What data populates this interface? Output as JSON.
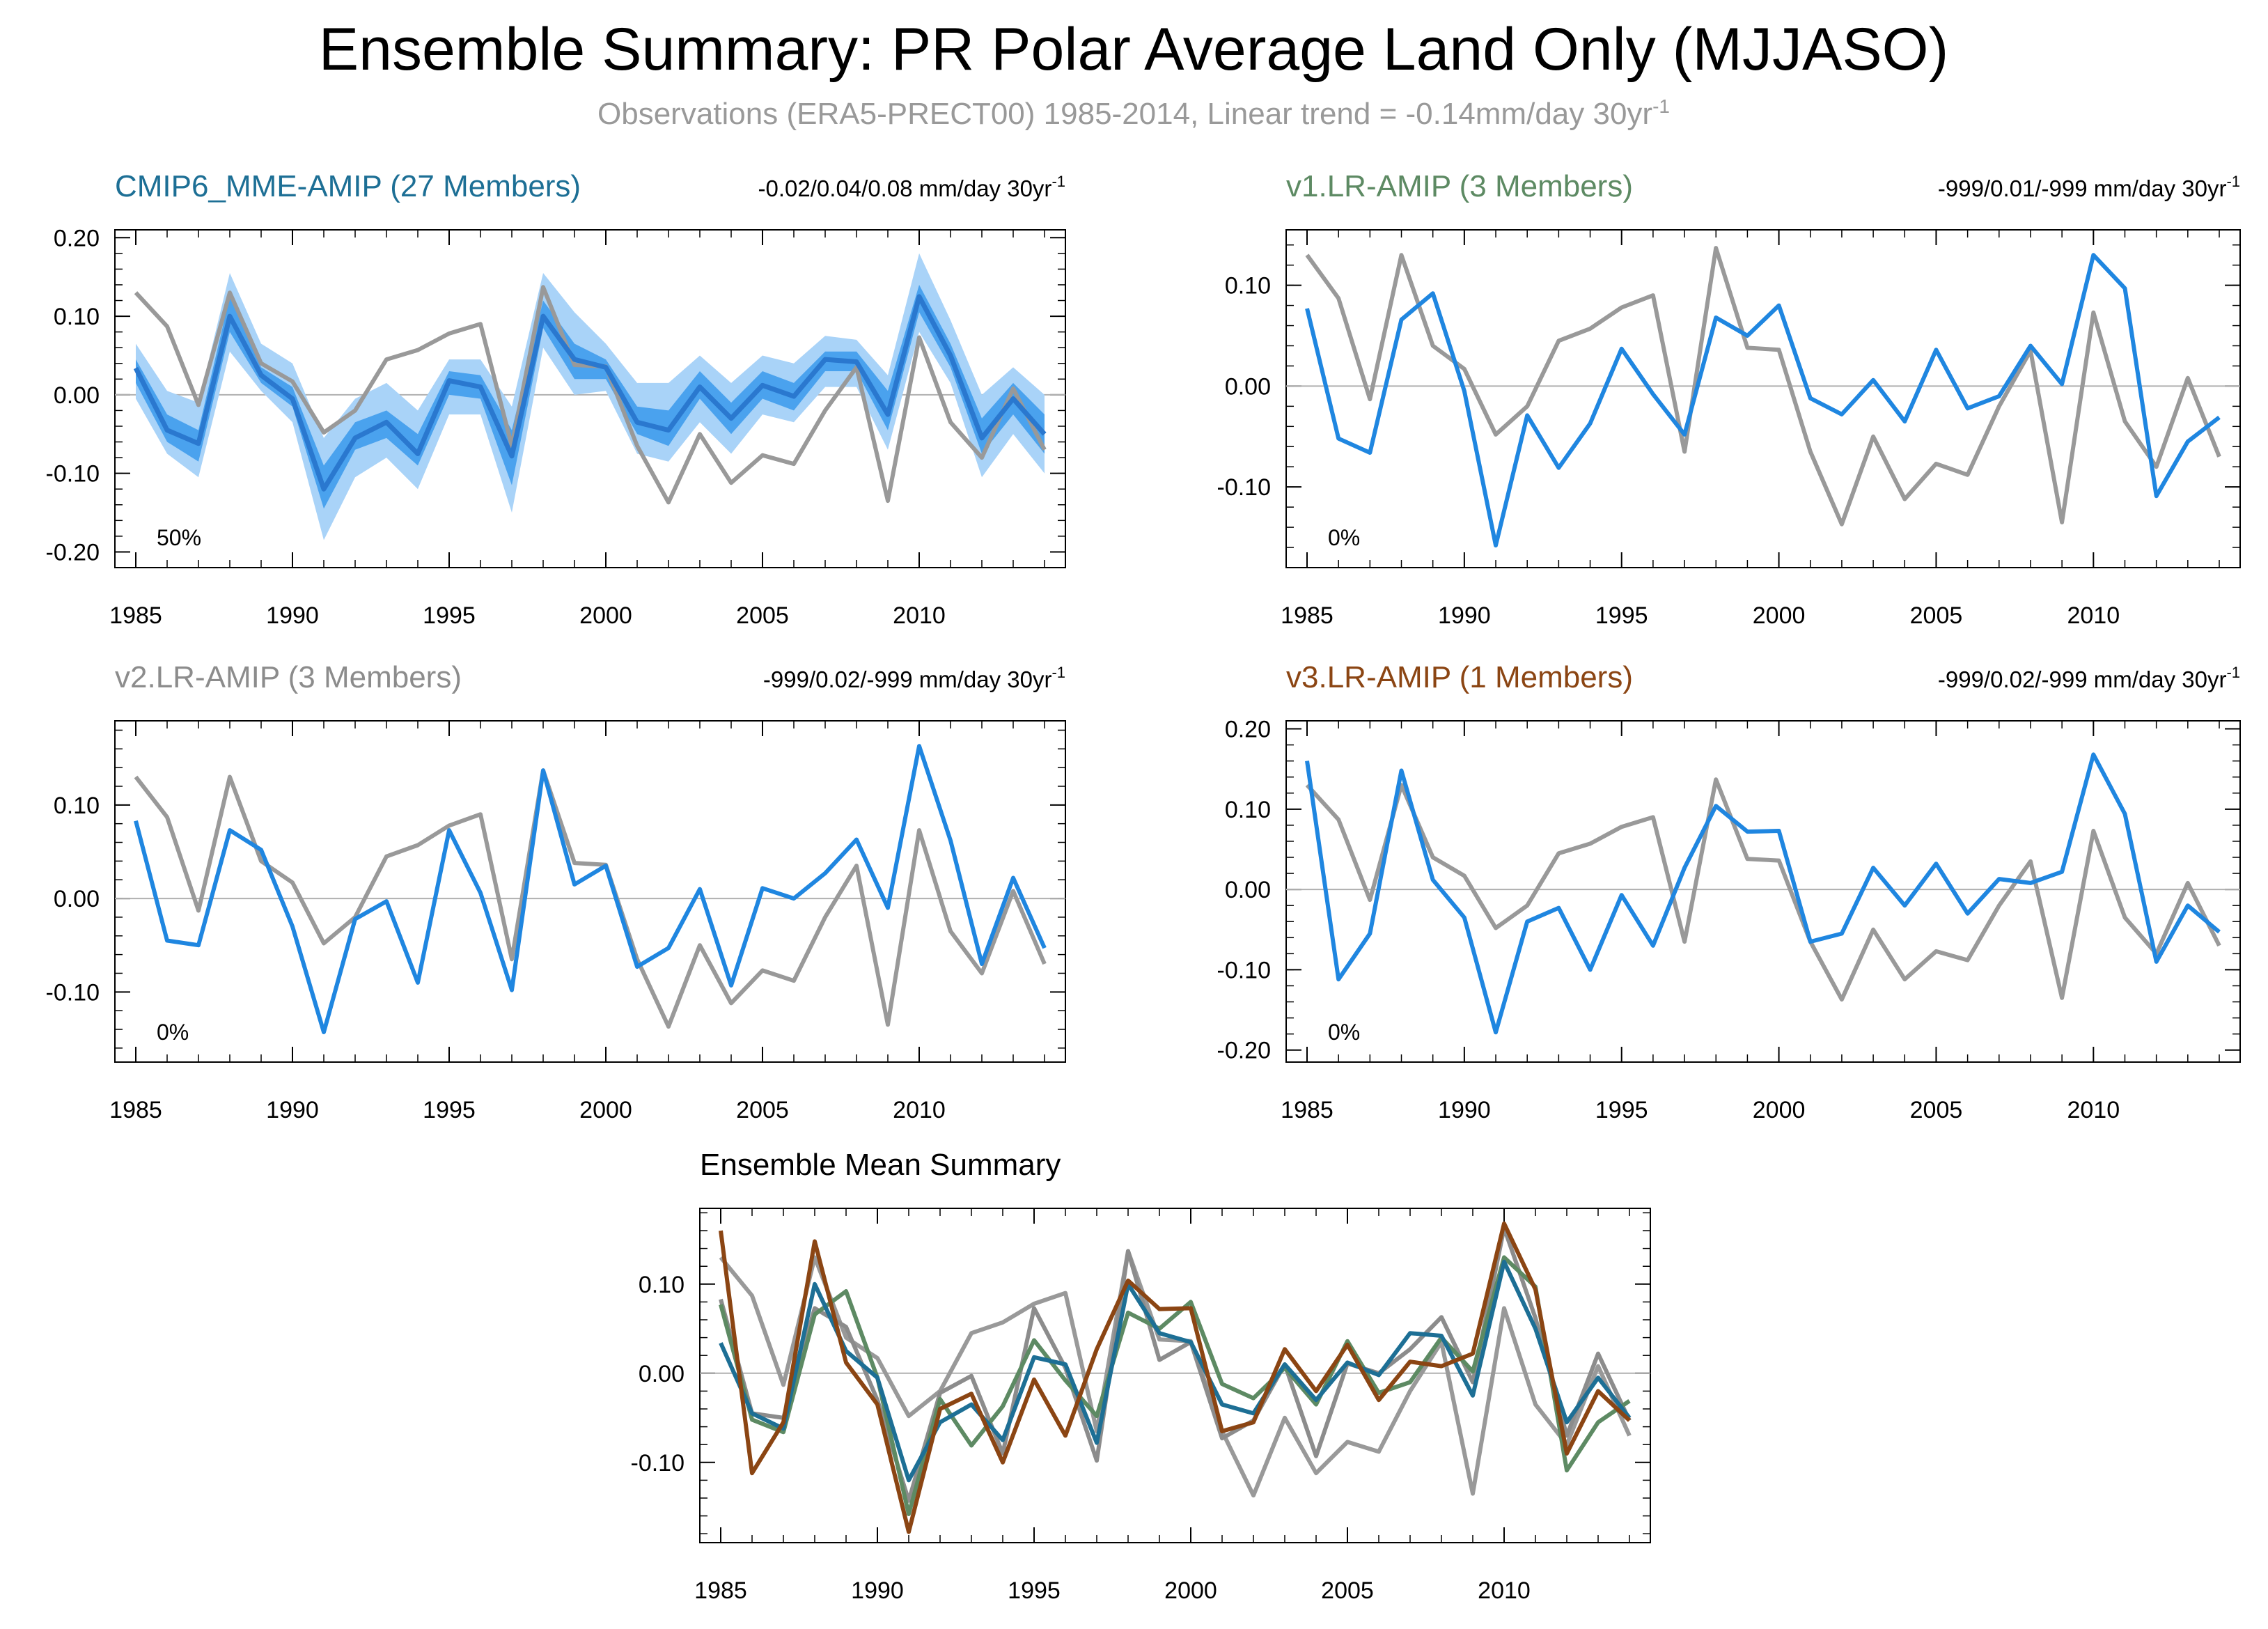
{
  "header": {
    "title": "Ensemble Summary: PR Polar Average Land Only (MJJASO)",
    "subtitle_main": "Observations (ERA5-PRECT00) 1985-2014, Linear trend = -0.14mm/day 30yr",
    "subtitle_sup": "-1"
  },
  "colors": {
    "observations": "#999999",
    "model_line": "#1f86e0",
    "band_outer": "#a9d3f8",
    "band_inner": "#4aa2ee",
    "mme_mean": "#2a78cf",
    "cmip6_title": "#1d6f95",
    "v1_title": "#5d8a63",
    "v2_title": "#8c8c8c",
    "v3_title": "#8b4513"
  },
  "years": [
    1985,
    1986,
    1987,
    1988,
    1989,
    1990,
    1991,
    1992,
    1993,
    1994,
    1995,
    1996,
    1997,
    1998,
    1999,
    2000,
    2001,
    2002,
    2003,
    2004,
    2005,
    2006,
    2007,
    2008,
    2009,
    2010,
    2011,
    2012,
    2013,
    2014
  ],
  "chart_data": [
    {
      "id": "cmip6",
      "type": "line",
      "title": "CMIP6_MME-AMIP (27 Members)",
      "trend_text": "-0.02/0.04/0.08 mm/day 30yr",
      "trend_sup": "-1",
      "percent_label": "50%",
      "xlim": [
        1985,
        2014
      ],
      "ylim": [
        -0.22,
        0.21
      ],
      "yticks": [
        -0.2,
        -0.1,
        0.0,
        0.1,
        0.2
      ],
      "ytick_labels": [
        "-0.20",
        "-0.10",
        "0.00",
        "0.10",
        "0.20"
      ],
      "xticks": [
        1985,
        1990,
        1995,
        2000,
        2005,
        2010
      ],
      "xtick_labels": [
        "1985",
        "1990",
        "1995",
        "2000",
        "2005",
        "2010"
      ],
      "band_outer_upper": [
        0.065,
        0.005,
        -0.01,
        0.155,
        0.065,
        0.04,
        -0.055,
        -0.005,
        0.015,
        -0.02,
        0.045,
        0.045,
        -0.015,
        0.155,
        0.105,
        0.065,
        0.015,
        0.015,
        0.05,
        0.015,
        0.05,
        0.04,
        0.075,
        0.07,
        0.025,
        0.18,
        0.095,
        0.0,
        0.035,
        0.0
      ],
      "band_outer_lower": [
        -0.005,
        -0.075,
        -0.105,
        0.055,
        0.005,
        -0.035,
        -0.185,
        -0.105,
        -0.08,
        -0.12,
        -0.025,
        -0.025,
        -0.15,
        0.06,
        0.0,
        0.005,
        -0.075,
        -0.085,
        -0.035,
        -0.075,
        -0.025,
        -0.035,
        0.01,
        0.01,
        -0.07,
        0.08,
        0.015,
        -0.105,
        -0.05,
        -0.1
      ],
      "band_inner_upper": [
        0.045,
        -0.025,
        -0.045,
        0.125,
        0.035,
        0.01,
        -0.09,
        -0.035,
        -0.02,
        -0.05,
        0.03,
        0.025,
        -0.045,
        0.12,
        0.065,
        0.045,
        -0.015,
        -0.02,
        0.03,
        -0.01,
        0.03,
        0.015,
        0.055,
        0.055,
        0.005,
        0.14,
        0.065,
        -0.03,
        0.015,
        -0.025
      ],
      "band_inner_lower": [
        0.015,
        -0.06,
        -0.085,
        0.08,
        0.015,
        -0.015,
        -0.145,
        -0.07,
        -0.055,
        -0.09,
        0.0,
        -0.005,
        -0.115,
        0.085,
        0.02,
        0.02,
        -0.05,
        -0.065,
        -0.005,
        -0.05,
        -0.005,
        -0.02,
        0.03,
        0.03,
        -0.045,
        0.105,
        0.035,
        -0.075,
        -0.025,
        -0.075
      ],
      "series": [
        {
          "role": "observations",
          "values": [
            0.13,
            0.087,
            -0.013,
            0.13,
            0.04,
            0.017,
            -0.048,
            -0.02,
            0.045,
            0.057,
            0.078,
            0.09,
            -0.065,
            0.137,
            0.038,
            0.036,
            -0.065,
            -0.137,
            -0.05,
            -0.112,
            -0.077,
            -0.088,
            -0.02,
            0.035,
            -0.135,
            0.073,
            -0.035,
            -0.08,
            0.008,
            -0.07
          ]
        },
        {
          "role": "ensemble_mean",
          "values": [
            0.034,
            -0.045,
            -0.062,
            0.1,
            0.025,
            -0.005,
            -0.12,
            -0.055,
            -0.035,
            -0.075,
            0.018,
            0.01,
            -0.078,
            0.1,
            0.045,
            0.035,
            -0.035,
            -0.045,
            0.01,
            -0.03,
            0.012,
            -0.002,
            0.045,
            0.042,
            -0.025,
            0.125,
            0.05,
            -0.055,
            -0.005,
            -0.05
          ]
        }
      ]
    },
    {
      "id": "v1",
      "type": "line",
      "title": "v1.LR-AMIP (3 Members)",
      "trend_text": "-999/0.01/-999 mm/day 30yr",
      "trend_sup": "-1",
      "percent_label": "0%",
      "xlim": [
        1985,
        2014
      ],
      "ylim": [
        -0.18,
        0.155
      ],
      "yticks": [
        -0.1,
        0.0,
        0.1
      ],
      "ytick_labels": [
        "-0.10",
        "0.00",
        "0.10"
      ],
      "xticks": [
        1985,
        1990,
        1995,
        2000,
        2005,
        2010
      ],
      "xtick_labels": [
        "1985",
        "1990",
        "1995",
        "2000",
        "2005",
        "2010"
      ],
      "series": [
        {
          "role": "observations",
          "values": [
            0.13,
            0.087,
            -0.013,
            0.13,
            0.04,
            0.017,
            -0.048,
            -0.02,
            0.045,
            0.057,
            0.078,
            0.09,
            -0.065,
            0.137,
            0.038,
            0.036,
            -0.065,
            -0.137,
            -0.05,
            -0.112,
            -0.077,
            -0.088,
            -0.02,
            0.035,
            -0.135,
            0.073,
            -0.035,
            -0.08,
            0.008,
            -0.07
          ]
        },
        {
          "role": "model",
          "values": [
            0.077,
            -0.052,
            -0.066,
            0.066,
            0.092,
            -0.005,
            -0.158,
            -0.029,
            -0.081,
            -0.037,
            0.037,
            -0.008,
            -0.048,
            0.068,
            0.05,
            0.08,
            -0.012,
            -0.028,
            0.006,
            -0.035,
            0.036,
            -0.022,
            -0.01,
            0.04,
            0.002,
            0.13,
            0.097,
            -0.109,
            -0.055,
            -0.031
          ]
        }
      ]
    },
    {
      "id": "v2",
      "type": "line",
      "title": "v2.LR-AMIP (3 Members)",
      "trend_text": "-999/0.02/-999 mm/day 30yr",
      "trend_sup": "-1",
      "percent_label": "0%",
      "xlim": [
        1985,
        2014
      ],
      "ylim": [
        -0.175,
        0.19
      ],
      "yticks": [
        -0.1,
        0.0,
        0.1
      ],
      "ytick_labels": [
        "-0.10",
        "0.00",
        "0.10"
      ],
      "xticks": [
        1985,
        1990,
        1995,
        2000,
        2005,
        2010
      ],
      "xtick_labels": [
        "1985",
        "1990",
        "1995",
        "2000",
        "2005",
        "2010"
      ],
      "series": [
        {
          "role": "observations",
          "values": [
            0.13,
            0.087,
            -0.013,
            0.13,
            0.04,
            0.017,
            -0.048,
            -0.02,
            0.045,
            0.057,
            0.078,
            0.09,
            -0.065,
            0.137,
            0.038,
            0.036,
            -0.065,
            -0.137,
            -0.05,
            -0.112,
            -0.077,
            -0.088,
            -0.02,
            0.035,
            -0.135,
            0.073,
            -0.035,
            -0.08,
            0.008,
            -0.07
          ]
        },
        {
          "role": "model",
          "values": [
            0.083,
            -0.045,
            -0.05,
            0.073,
            0.052,
            -0.03,
            -0.143,
            -0.022,
            -0.003,
            -0.09,
            0.073,
            0.006,
            -0.098,
            0.137,
            0.015,
            0.035,
            -0.073,
            -0.053,
            0.01,
            -0.093,
            0.011,
            0.0,
            0.027,
            0.063,
            -0.01,
            0.163,
            0.062,
            -0.07,
            0.022,
            -0.053
          ]
        }
      ]
    },
    {
      "id": "v3",
      "type": "line",
      "title": "v3.LR-AMIP (1 Members)",
      "trend_text": "-999/0.02/-999 mm/day 30yr",
      "trend_sup": "-1",
      "percent_label": "0%",
      "xlim": [
        1985,
        2014
      ],
      "ylim": [
        -0.215,
        0.21
      ],
      "yticks": [
        -0.2,
        -0.1,
        0.0,
        0.1,
        0.2
      ],
      "ytick_labels": [
        "-0.20",
        "-0.10",
        "0.00",
        "0.10",
        "0.20"
      ],
      "xticks": [
        1985,
        1990,
        1995,
        2000,
        2005,
        2010
      ],
      "xtick_labels": [
        "1985",
        "1990",
        "1995",
        "2000",
        "2005",
        "2010"
      ],
      "series": [
        {
          "role": "observations",
          "values": [
            0.13,
            0.087,
            -0.013,
            0.13,
            0.04,
            0.017,
            -0.048,
            -0.02,
            0.045,
            0.057,
            0.078,
            0.09,
            -0.065,
            0.137,
            0.038,
            0.036,
            -0.065,
            -0.137,
            -0.05,
            -0.112,
            -0.077,
            -0.088,
            -0.02,
            0.035,
            -0.135,
            0.073,
            -0.035,
            -0.08,
            0.008,
            -0.07
          ]
        },
        {
          "role": "model",
          "values": [
            0.16,
            -0.112,
            -0.055,
            0.148,
            0.012,
            -0.035,
            -0.178,
            -0.04,
            -0.023,
            -0.1,
            -0.007,
            -0.07,
            0.027,
            0.104,
            0.072,
            0.073,
            -0.065,
            -0.055,
            0.027,
            -0.02,
            0.032,
            -0.03,
            0.013,
            0.008,
            0.022,
            0.168,
            0.094,
            -0.09,
            -0.02,
            -0.053
          ]
        }
      ]
    },
    {
      "id": "mean",
      "type": "line",
      "title": "Ensemble Mean Summary",
      "xlim": [
        1985,
        2014
      ],
      "ylim": [
        -0.19,
        0.185
      ],
      "yticks": [
        -0.1,
        0.0,
        0.1
      ],
      "ytick_labels": [
        "-0.10",
        "0.00",
        "0.10"
      ],
      "xticks": [
        1985,
        1990,
        1995,
        2000,
        2005,
        2010
      ],
      "xtick_labels": [
        "1985",
        "1990",
        "1995",
        "2000",
        "2005",
        "2010"
      ],
      "series": [
        {
          "role": "observations",
          "color": "#999999",
          "values": [
            0.13,
            0.087,
            -0.013,
            0.13,
            0.04,
            0.017,
            -0.048,
            -0.02,
            0.045,
            0.057,
            0.078,
            0.09,
            -0.065,
            0.137,
            0.038,
            0.036,
            -0.065,
            -0.137,
            -0.05,
            -0.112,
            -0.077,
            -0.088,
            -0.02,
            0.035,
            -0.135,
            0.073,
            -0.035,
            -0.08,
            0.008,
            -0.07
          ]
        },
        {
          "role": "v2",
          "color": "#8c8c8c",
          "values": [
            0.083,
            -0.045,
            -0.05,
            0.073,
            0.052,
            -0.03,
            -0.143,
            -0.022,
            -0.003,
            -0.09,
            0.073,
            0.006,
            -0.098,
            0.137,
            0.015,
            0.035,
            -0.073,
            -0.053,
            0.01,
            -0.093,
            0.011,
            0.0,
            0.027,
            0.063,
            -0.01,
            0.163,
            0.062,
            -0.07,
            0.022,
            -0.053
          ]
        },
        {
          "role": "v1",
          "color": "#5d8a63",
          "values": [
            0.077,
            -0.052,
            -0.066,
            0.066,
            0.092,
            -0.005,
            -0.158,
            -0.029,
            -0.081,
            -0.037,
            0.037,
            -0.008,
            -0.048,
            0.068,
            0.05,
            0.08,
            -0.012,
            -0.028,
            0.006,
            -0.035,
            0.036,
            -0.022,
            -0.01,
            0.04,
            0.002,
            0.13,
            0.097,
            -0.109,
            -0.055,
            -0.031
          ]
        },
        {
          "role": "cmip6",
          "color": "#1d6f95",
          "values": [
            0.034,
            -0.045,
            -0.062,
            0.1,
            0.025,
            -0.005,
            -0.12,
            -0.055,
            -0.035,
            -0.075,
            0.018,
            0.01,
            -0.078,
            0.1,
            0.045,
            0.035,
            -0.035,
            -0.045,
            0.01,
            -0.03,
            0.012,
            -0.002,
            0.045,
            0.042,
            -0.025,
            0.125,
            0.05,
            -0.055,
            -0.005,
            -0.05
          ]
        },
        {
          "role": "v3",
          "color": "#8b4513",
          "values": [
            0.16,
            -0.112,
            -0.055,
            0.148,
            0.012,
            -0.035,
            -0.178,
            -0.04,
            -0.023,
            -0.1,
            -0.007,
            -0.07,
            0.027,
            0.104,
            0.072,
            0.073,
            -0.065,
            -0.055,
            0.027,
            -0.02,
            0.032,
            -0.03,
            0.013,
            0.008,
            0.022,
            0.168,
            0.094,
            -0.09,
            -0.02,
            -0.053
          ]
        }
      ]
    }
  ]
}
